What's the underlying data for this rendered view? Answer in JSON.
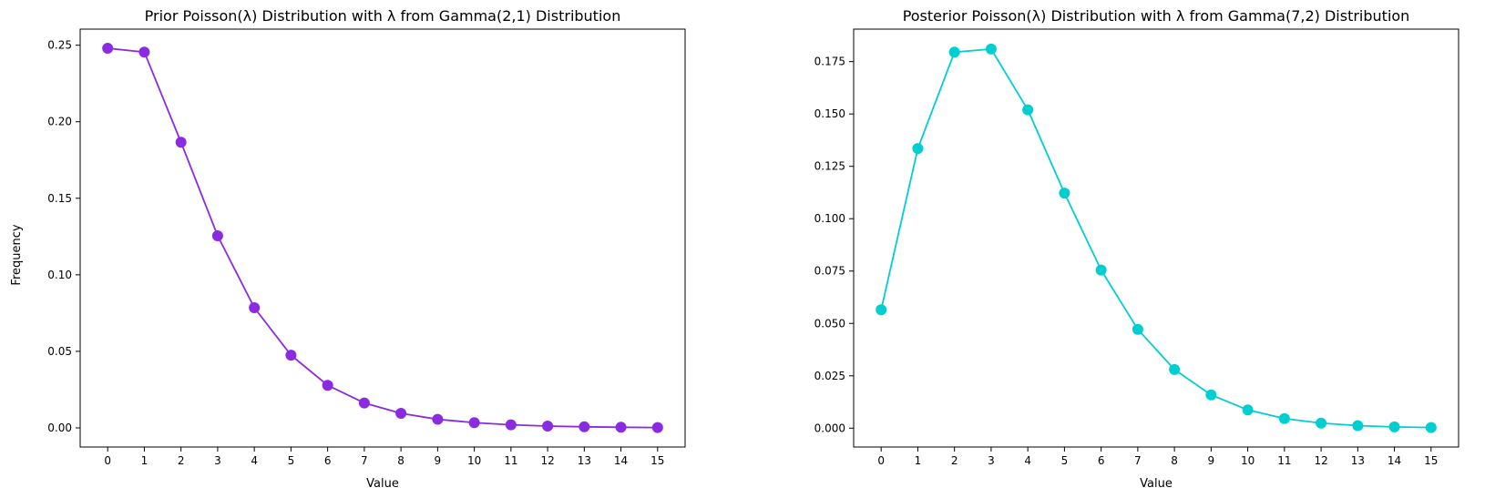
{
  "chart_data": [
    {
      "type": "line",
      "title": "Prior Poisson(λ) Distribution with λ from Gamma(2,1) Distribution",
      "xlabel": "Value",
      "ylabel": "Frequency",
      "x": [
        0,
        1,
        2,
        3,
        4,
        5,
        6,
        7,
        8,
        9,
        10,
        11,
        12,
        13,
        14,
        15
      ],
      "x_ticks": [
        "0",
        "1",
        "2",
        "3",
        "4",
        "5",
        "6",
        "7",
        "8",
        "9",
        "10",
        "11",
        "12",
        "13",
        "14",
        "15"
      ],
      "y_ticks": [
        "0.00",
        "0.05",
        "0.10",
        "0.15",
        "0.20",
        "0.25"
      ],
      "xlim": [
        -0.75,
        15.75
      ],
      "ylim": [
        -0.0125,
        0.2605
      ],
      "grid": false,
      "series": [
        {
          "color": "#8a2be2",
          "marker": "circle",
          "values": [
            0.248,
            0.2455,
            0.1866,
            0.1255,
            0.0785,
            0.0475,
            0.0278,
            0.0163,
            0.0095,
            0.0056,
            0.0034,
            0.002,
            0.0012,
            0.0007,
            0.0004,
            0.0002
          ]
        }
      ]
    },
    {
      "type": "line",
      "title": "Posterior Poisson(λ) Distribution with λ from Gamma(7,2) Distribution",
      "xlabel": "Value",
      "ylabel": "",
      "x": [
        0,
        1,
        2,
        3,
        4,
        5,
        6,
        7,
        8,
        9,
        10,
        11,
        12,
        13,
        14,
        15
      ],
      "x_ticks": [
        "0",
        "1",
        "2",
        "3",
        "4",
        "5",
        "6",
        "7",
        "8",
        "9",
        "10",
        "11",
        "12",
        "13",
        "14",
        "15"
      ],
      "y_ticks": [
        "0.000",
        "0.025",
        "0.050",
        "0.075",
        "0.100",
        "0.125",
        "0.150",
        "0.175"
      ],
      "xlim": [
        -0.75,
        15.75
      ],
      "ylim": [
        -0.009,
        0.1905
      ],
      "grid": false,
      "series": [
        {
          "color": "#00ced1",
          "marker": "circle",
          "values": [
            0.0565,
            0.1335,
            0.1795,
            0.181,
            0.152,
            0.1122,
            0.0755,
            0.0472,
            0.028,
            0.0159,
            0.0087,
            0.0046,
            0.0024,
            0.0012,
            0.0006,
            0.0003
          ]
        }
      ]
    }
  ]
}
